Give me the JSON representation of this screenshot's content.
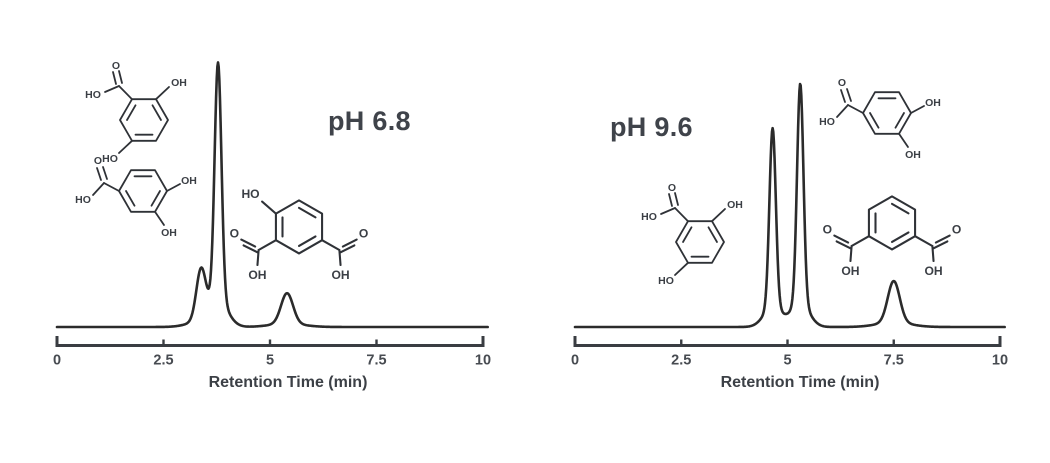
{
  "colors": {
    "curve": "#2b2b2b",
    "axis": "#3a3d42",
    "tick_text": "#474b51",
    "label_text": "#3f434a",
    "molecule": "#2f3237"
  },
  "panels": [
    {
      "ph_label": "pH 6.8",
      "xlabel": "Retention Time (min)",
      "molecules": [
        {
          "name": "2,5-dihydroxybenzoic acid",
          "labels": {
            "carbonyl_o": "O",
            "acid_ho": "HO",
            "ring_oh_top": "OH",
            "ring_oh_bottom": "HO"
          }
        },
        {
          "name": "3,4-dihydroxybenzoic acid",
          "labels": {
            "carbonyl_o": "O",
            "acid_ho": "HO",
            "ring_oh_right": "OH",
            "ring_oh_bottom": "OH"
          }
        },
        {
          "name": "4-hydroxyisophthalic acid",
          "labels": {
            "ring_ho": "HO",
            "carbonyl_o_left": "O",
            "acid_oh_left": "OH",
            "carbonyl_o_right": "O",
            "acid_oh_right": "OH"
          }
        }
      ]
    },
    {
      "ph_label": "pH 9.6",
      "xlabel": "Retention Time (min)",
      "molecules": [
        {
          "name": "3,4-dihydroxybenzoic acid",
          "labels": {
            "carbonyl_o": "O",
            "acid_ho": "HO",
            "ring_oh_right": "OH",
            "ring_oh_bottom": "OH"
          }
        },
        {
          "name": "2,5-dihydroxybenzoic acid",
          "labels": {
            "carbonyl_o": "O",
            "acid_ho": "HO",
            "ring_oh_top": "OH",
            "ring_oh_bottom": "HO"
          }
        },
        {
          "name": "isophthalic acid",
          "labels": {
            "carbonyl_o_left": "O",
            "acid_oh_left": "OH",
            "carbonyl_o_right": "O",
            "acid_oh_right": "OH"
          }
        }
      ]
    }
  ],
  "chart_data": [
    {
      "type": "line",
      "title": "pH 6.8",
      "xlabel": "Retention Time (min)",
      "ylabel": "",
      "xlim": [
        0,
        10
      ],
      "ylim": [
        0,
        1
      ],
      "grid": false,
      "x_ticks": [
        0,
        2.5,
        5,
        7.5,
        10
      ],
      "x_tick_labels": [
        "0",
        "2.5",
        "5",
        "7.5",
        "10"
      ],
      "peaks": [
        {
          "retention_time": 3.38,
          "height": 0.2,
          "sigma": 0.11,
          "note": "leading shoulder"
        },
        {
          "retention_time": 3.78,
          "height": 0.97,
          "sigma": 0.08,
          "note": "main co-eluting peak"
        },
        {
          "retention_time": 5.4,
          "height": 0.125,
          "sigma": 0.14,
          "note": "small peak"
        }
      ]
    },
    {
      "type": "line",
      "title": "pH 9.6",
      "xlabel": "Retention Time (min)",
      "ylabel": "",
      "xlim": [
        0,
        10
      ],
      "ylim": [
        0,
        1
      ],
      "grid": false,
      "x_ticks": [
        0,
        2.5,
        5,
        7.5,
        10
      ],
      "x_tick_labels": [
        "0",
        "2.5",
        "5",
        "7.5",
        "10"
      ],
      "peaks": [
        {
          "retention_time": 4.65,
          "height": 0.735,
          "sigma": 0.075,
          "note": "resolved peak 1"
        },
        {
          "retention_time": 5.3,
          "height": 0.9,
          "sigma": 0.075,
          "note": "resolved peak 2"
        },
        {
          "retention_time": 7.5,
          "height": 0.17,
          "sigma": 0.14,
          "note": "resolved peak 3"
        }
      ]
    }
  ]
}
